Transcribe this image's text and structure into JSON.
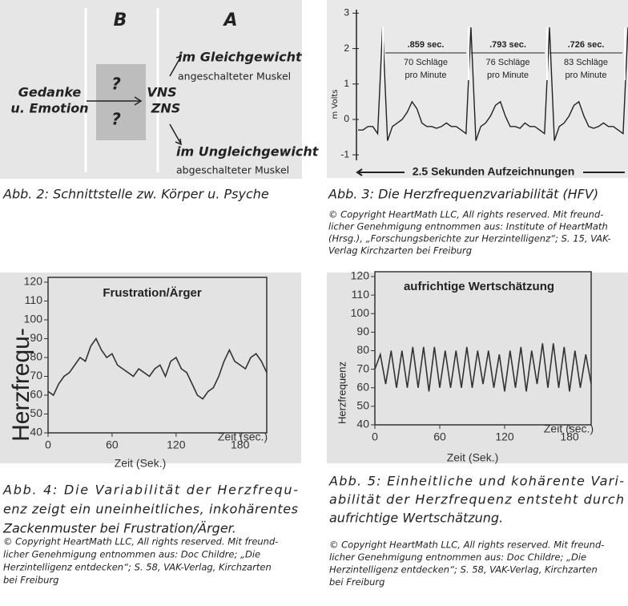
{
  "fig2": {
    "diagram": {
      "col_b": "B",
      "col_a": "A",
      "input": [
        "Gedanke",
        "u. Emotion"
      ],
      "unknown": [
        "?",
        "?"
      ],
      "systems": [
        "VNS",
        "ZNS"
      ],
      "balanced": "im Gleichgewicht",
      "balanced_note": "angeschalteter Muskel",
      "unbalanced": "im Ungleichgewicht",
      "unbalanced_note": "abgeschalteter Muskel"
    },
    "caption": "Abb. 2: Schnittstelle zw. Körper u. Psyche"
  },
  "fig3": {
    "chart": {
      "type": "line",
      "y_label": "m Volts",
      "ylim": [
        -1.2,
        3.1
      ],
      "yticks": [
        3,
        2,
        1,
        0,
        -1
      ],
      "color": "#222",
      "values": [
        -0.3,
        -0.3,
        -0.2,
        -0.2,
        -0.4,
        2.6,
        -0.6,
        -0.2,
        -0.1,
        0,
        0.2,
        0.5,
        0.3,
        -0.1,
        -0.2,
        -0.2,
        -0.25,
        -0.2,
        -0.1,
        -0.2,
        -0.2,
        -0.3,
        -0.4,
        2.6,
        -0.6,
        -0.2,
        -0.1,
        0.1,
        0.4,
        0.5,
        0.1,
        -0.2,
        -0.2,
        -0.25,
        -0.1,
        -0.2,
        -0.2,
        -0.3,
        -0.4,
        2.6,
        -0.6,
        -0.2,
        -0.1,
        0.1,
        0.4,
        0.5,
        0.1,
        -0.2,
        -0.25,
        -0.2,
        -0.1,
        -0.2,
        -0.2,
        -0.3,
        -0.4,
        2.6
      ],
      "intervals": [
        ".859 sec.",
        ".793 sec.",
        ".726 sec."
      ],
      "rates": [
        [
          "70 Schläge",
          "pro Minute"
        ],
        [
          "76 Schläge",
          "pro Minute"
        ],
        [
          "83 Schläge",
          "pro Minute"
        ]
      ],
      "footer": "2.5 Sekunden Aufzeichnungen"
    },
    "caption": "Abb. 3: Die  Herzfrequenzvariabilität (HFV)",
    "copyright": [
      "© Copyright HeartMath LLC, All rights reserved. Mit freund-",
      "licher Genehmigung entnommen aus: Institute of HeartMath",
      "(Hrsg.), „Forschungsberichte zur Herzintelligenz“; S. 15, VAK-",
      "Verlag Kirchzarten bei Freiburg"
    ]
  },
  "fig4": {
    "chart": {
      "type": "line",
      "title": "Frustration/Ärger",
      "y_label": "Herzfrequ-",
      "x_label": "Zeit (Sek.)",
      "x_unit_label": "Zeit (sec.)",
      "xlim": [
        0,
        205
      ],
      "ylim": [
        40,
        120
      ],
      "xticks": [
        0,
        60,
        120,
        180
      ],
      "yticks": [
        40,
        50,
        60,
        70,
        80,
        90,
        100,
        110,
        120
      ],
      "color": "#333",
      "x": [
        0,
        5,
        10,
        15,
        20,
        25,
        30,
        35,
        40,
        45,
        50,
        55,
        60,
        65,
        70,
        75,
        80,
        85,
        90,
        95,
        100,
        105,
        110,
        115,
        120,
        125,
        130,
        135,
        140,
        145,
        150,
        155,
        160,
        165,
        170,
        175,
        180,
        185,
        190,
        195,
        200,
        205
      ],
      "values": [
        62,
        60,
        66,
        70,
        72,
        76,
        80,
        78,
        86,
        90,
        84,
        80,
        82,
        76,
        74,
        72,
        70,
        74,
        72,
        70,
        74,
        76,
        70,
        78,
        80,
        74,
        72,
        66,
        60,
        58,
        62,
        64,
        70,
        78,
        84,
        78,
        76,
        74,
        80,
        82,
        78,
        72
      ]
    },
    "caption": [
      "Abb. 4:  Die Variabilität der Herzfrequ-",
      "enz zeigt ein uneinheitliches, inkohärentes",
      "Zackenmuster bei Frustration/Ärger."
    ],
    "copyright": [
      "© Copyright HeartMath LLC, All rights reserved. Mit freund-",
      "licher Genehmigung entnommen aus: Doc Childre; „Die",
      "Herzintelligenz entdecken“; S. 58, VAK-Verlag, Kirchzarten",
      "bei Freiburg"
    ]
  },
  "fig5": {
    "chart": {
      "type": "line",
      "title": "aufrichtige Wertschätzung",
      "y_label": "Herzfrequenz",
      "x_label": "Zeit (Sek.)",
      "x_unit_label": "Zeit (sec.)",
      "xlim": [
        0,
        200
      ],
      "ylim": [
        40,
        120
      ],
      "xticks": [
        0,
        60,
        120,
        180
      ],
      "yticks": [
        40,
        50,
        60,
        70,
        80,
        90,
        100,
        110,
        120
      ],
      "color": "#333",
      "x": [
        0,
        5,
        10,
        15,
        20,
        25,
        30,
        35,
        40,
        45,
        50,
        55,
        60,
        65,
        70,
        75,
        80,
        85,
        90,
        95,
        100,
        105,
        110,
        115,
        120,
        125,
        130,
        135,
        140,
        145,
        150,
        155,
        160,
        165,
        170,
        175,
        180,
        185,
        190,
        195,
        200
      ],
      "values": [
        70,
        78,
        62,
        80,
        60,
        80,
        60,
        82,
        60,
        82,
        58,
        82,
        60,
        80,
        60,
        80,
        60,
        82,
        60,
        80,
        62,
        80,
        60,
        78,
        58,
        80,
        60,
        82,
        58,
        80,
        62,
        84,
        60,
        84,
        60,
        82,
        58,
        80,
        60,
        78,
        62
      ]
    },
    "caption": [
      "Abb. 5:  Einheitliche und kohärente Vari-",
      "abilität der Herzfrequenz entsteht durch",
      "aufrichtige Wertschätzung."
    ],
    "copyright": [
      "© Copyright HeartMath LLC, All rights reserved. Mit freund-",
      "licher Genehmigung entnommen aus: Doc Childre; „Die",
      "Herzintelligenz entdecken“; S. 58, VAK-Verlag, Kirchzarten",
      "bei Freiburg"
    ]
  }
}
